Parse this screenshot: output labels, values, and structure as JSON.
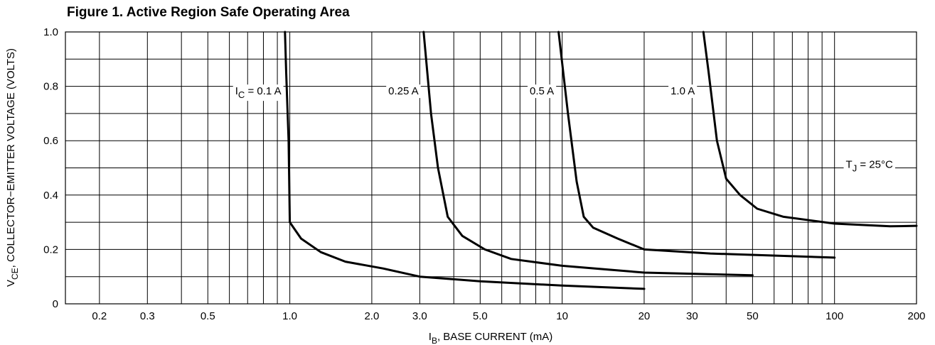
{
  "chart_data": {
    "type": "line",
    "title": "Figure 1. Active Region Safe Operating Area",
    "xlabel": {
      "main": "I",
      "sub": "B",
      "rest": ", BASE CURRENT (mA)"
    },
    "ylabel": {
      "main": "V",
      "sub": "CE",
      "rest": ", COLLECTOR−EMITTER VOLTAGE (VOLTS)"
    },
    "x_scale": "log",
    "xlim": [
      0.15,
      200
    ],
    "ylim": [
      0,
      1.0
    ],
    "grid": true,
    "x_tick_labels": [
      {
        "value": 0.2,
        "label": "0.2"
      },
      {
        "value": 0.3,
        "label": "0.3"
      },
      {
        "value": 0.5,
        "label": "0.5"
      },
      {
        "value": 1.0,
        "label": "1.0"
      },
      {
        "value": 2.0,
        "label": "2.0"
      },
      {
        "value": 3.0,
        "label": "3.0"
      },
      {
        "value": 5.0,
        "label": "5.0"
      },
      {
        "value": 10,
        "label": "10"
      },
      {
        "value": 20,
        "label": "20"
      },
      {
        "value": 30,
        "label": "30"
      },
      {
        "value": 50,
        "label": "50"
      },
      {
        "value": 100,
        "label": "100"
      },
      {
        "value": 200,
        "label": "200"
      }
    ],
    "y_tick_labels": [
      {
        "value": 0,
        "label": "0"
      },
      {
        "value": 0.2,
        "label": "0.2"
      },
      {
        "value": 0.4,
        "label": "0.4"
      },
      {
        "value": 0.6,
        "label": "0.6"
      },
      {
        "value": 0.8,
        "label": "0.8"
      },
      {
        "value": 1.0,
        "label": "1.0"
      }
    ],
    "x_gridlines": [
      0.2,
      0.3,
      0.4,
      0.5,
      0.6,
      0.7,
      0.8,
      0.9,
      1,
      2,
      3,
      4,
      5,
      6,
      7,
      8,
      9,
      10,
      20,
      30,
      40,
      50,
      60,
      70,
      80,
      90,
      100
    ],
    "y_gridlines": [
      0.1,
      0.2,
      0.3,
      0.4,
      0.5,
      0.6,
      0.7,
      0.8,
      0.9
    ],
    "series": [
      {
        "label": {
          "main": "I",
          "sub": "C",
          "rest": " = 0.1 A"
        },
        "label_at": [
          0.63,
          0.77
        ],
        "points": [
          [
            0.96,
            1.0
          ],
          [
            0.97,
            0.85
          ],
          [
            0.99,
            0.6
          ],
          [
            1.0,
            0.3
          ],
          [
            1.1,
            0.24
          ],
          [
            1.3,
            0.19
          ],
          [
            1.6,
            0.155
          ],
          [
            2.2,
            0.13
          ],
          [
            3.0,
            0.1
          ],
          [
            5.0,
            0.083
          ],
          [
            10,
            0.067
          ],
          [
            20,
            0.055
          ]
        ]
      },
      {
        "label": {
          "main": "",
          "sub": "",
          "rest": "0.25 A"
        },
        "label_at": [
          2.3,
          0.77
        ],
        "points": [
          [
            3.1,
            1.0
          ],
          [
            3.3,
            0.7
          ],
          [
            3.5,
            0.5
          ],
          [
            3.8,
            0.32
          ],
          [
            4.3,
            0.25
          ],
          [
            5.2,
            0.2
          ],
          [
            6.5,
            0.165
          ],
          [
            10,
            0.14
          ],
          [
            20,
            0.115
          ],
          [
            50,
            0.105
          ]
        ]
      },
      {
        "label": {
          "main": "",
          "sub": "",
          "rest": "0.5 A"
        },
        "label_at": [
          7.6,
          0.77
        ],
        "points": [
          [
            9.7,
            1.0
          ],
          [
            10.5,
            0.7
          ],
          [
            11.3,
            0.45
          ],
          [
            12.0,
            0.32
          ],
          [
            13.0,
            0.28
          ],
          [
            16,
            0.24
          ],
          [
            20,
            0.2
          ],
          [
            35,
            0.185
          ],
          [
            100,
            0.17
          ]
        ]
      },
      {
        "label": {
          "main": "",
          "sub": "",
          "rest": "1.0 A"
        },
        "label_at": [
          25,
          0.77
        ],
        "points": [
          [
            33,
            1.0
          ],
          [
            34.5,
            0.85
          ],
          [
            37,
            0.6
          ],
          [
            40,
            0.46
          ],
          [
            45,
            0.4
          ],
          [
            52,
            0.35
          ],
          [
            65,
            0.32
          ],
          [
            100,
            0.295
          ],
          [
            160,
            0.285
          ],
          [
            200,
            0.287
          ]
        ]
      }
    ],
    "annotations": [
      {
        "main": "T",
        "sub": "J",
        "rest": " = 25°C",
        "at": [
          110,
          0.5
        ]
      }
    ]
  }
}
